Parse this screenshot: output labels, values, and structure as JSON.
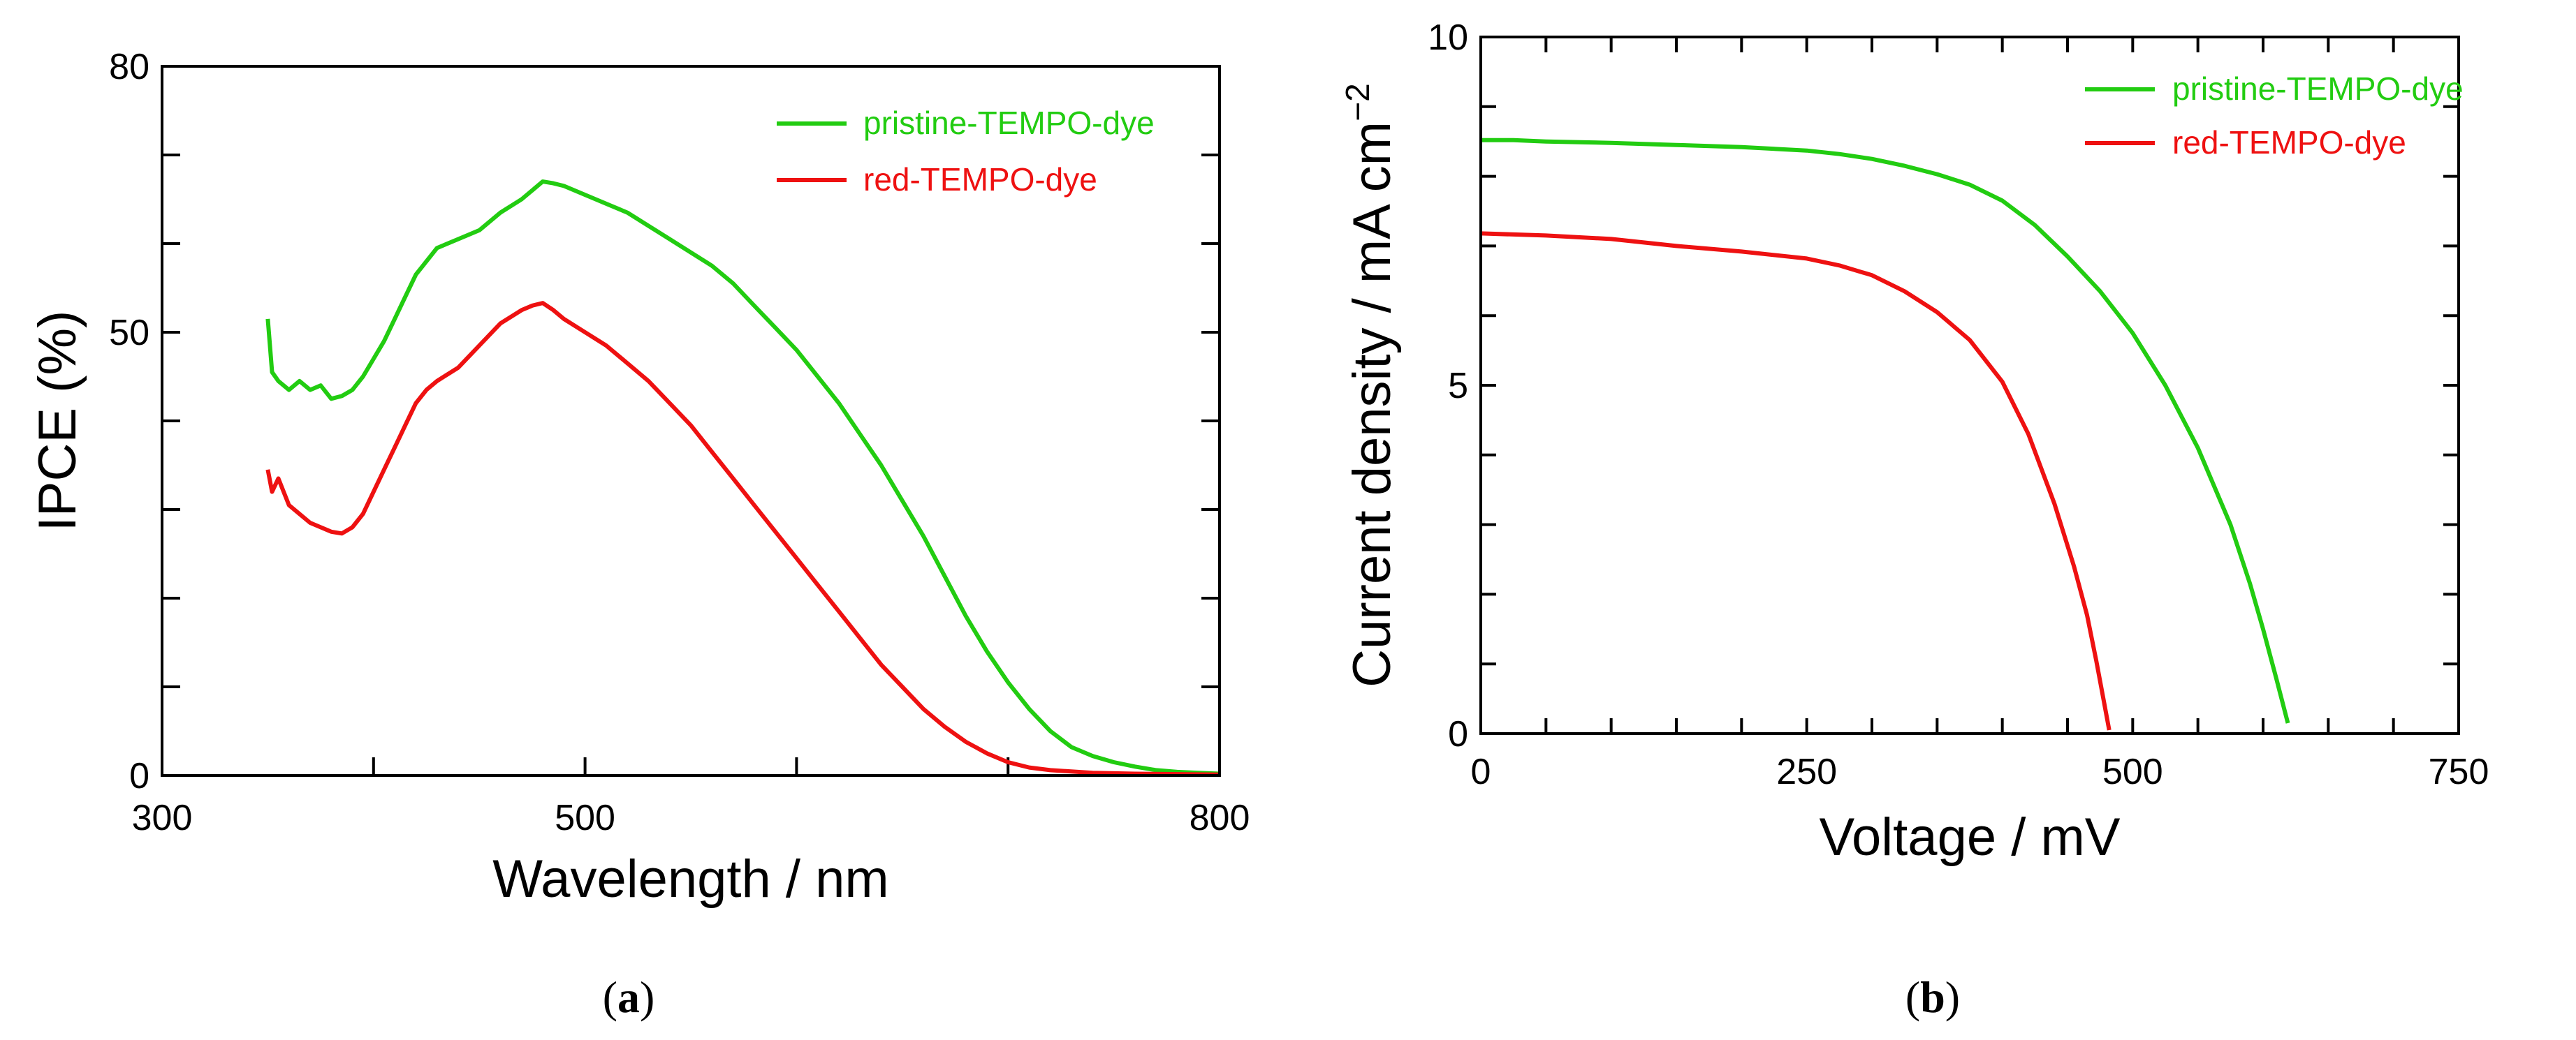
{
  "colors": {
    "green": "#22cc11",
    "red": "#ee1111"
  },
  "chart_data": [
    {
      "type": "line",
      "panel": "(a)",
      "xlabel": "Wavelength / nm",
      "ylabel": "IPCE (%)",
      "xlim": [
        300,
        800
      ],
      "ylim": [
        0,
        80
      ],
      "xticks_labeled": [
        300,
        500,
        800
      ],
      "xticks_minor": [
        400,
        600,
        700
      ],
      "yticks_labeled": [
        0,
        50,
        80
      ],
      "yticks_minor": [
        10,
        20,
        30,
        40,
        60,
        70
      ],
      "legend_position": "top-right",
      "series": [
        {
          "name": "pristine-TEMPO-dye",
          "color": "#22cc11",
          "points": [
            [
              350,
              51.5
            ],
            [
              352,
              45.5
            ],
            [
              355,
              44.5
            ],
            [
              360,
              43.5
            ],
            [
              365,
              44.5
            ],
            [
              370,
              43.5
            ],
            [
              375,
              44
            ],
            [
              380,
              42.5
            ],
            [
              385,
              42.8
            ],
            [
              390,
              43.5
            ],
            [
              395,
              45
            ],
            [
              400,
              47
            ],
            [
              405,
              49
            ],
            [
              410,
              51.5
            ],
            [
              415,
              54
            ],
            [
              420,
              56.5
            ],
            [
              425,
              58
            ],
            [
              430,
              59.5
            ],
            [
              440,
              60.5
            ],
            [
              450,
              61.5
            ],
            [
              460,
              63.5
            ],
            [
              470,
              65
            ],
            [
              475,
              66
            ],
            [
              480,
              67
            ],
            [
              485,
              66.8
            ],
            [
              490,
              66.5
            ],
            [
              500,
              65.5
            ],
            [
              510,
              64.5
            ],
            [
              520,
              63.5
            ],
            [
              530,
              62
            ],
            [
              540,
              60.5
            ],
            [
              550,
              59
            ],
            [
              560,
              57.5
            ],
            [
              570,
              55.5
            ],
            [
              580,
              53
            ],
            [
              590,
              50.5
            ],
            [
              600,
              48
            ],
            [
              610,
              45
            ],
            [
              620,
              42
            ],
            [
              630,
              38.5
            ],
            [
              640,
              35
            ],
            [
              650,
              31
            ],
            [
              660,
              27
            ],
            [
              670,
              22.5
            ],
            [
              680,
              18
            ],
            [
              690,
              14
            ],
            [
              700,
              10.5
            ],
            [
              710,
              7.5
            ],
            [
              720,
              5
            ],
            [
              730,
              3.2
            ],
            [
              740,
              2.2
            ],
            [
              750,
              1.5
            ],
            [
              760,
              1
            ],
            [
              770,
              0.6
            ],
            [
              780,
              0.4
            ],
            [
              790,
              0.3
            ],
            [
              800,
              0.2
            ]
          ]
        },
        {
          "name": "red-TEMPO-dye",
          "color": "#ee1111",
          "points": [
            [
              350,
              34.5
            ],
            [
              352,
              32
            ],
            [
              355,
              33.5
            ],
            [
              360,
              30.5
            ],
            [
              365,
              29.5
            ],
            [
              370,
              28.5
            ],
            [
              375,
              28
            ],
            [
              380,
              27.5
            ],
            [
              385,
              27.3
            ],
            [
              390,
              28
            ],
            [
              395,
              29.5
            ],
            [
              400,
              32
            ],
            [
              405,
              34.5
            ],
            [
              410,
              37
            ],
            [
              415,
              39.5
            ],
            [
              420,
              42
            ],
            [
              425,
              43.5
            ],
            [
              430,
              44.5
            ],
            [
              440,
              46
            ],
            [
              450,
              48.5
            ],
            [
              460,
              51
            ],
            [
              470,
              52.5
            ],
            [
              475,
              53
            ],
            [
              480,
              53.3
            ],
            [
              485,
              52.5
            ],
            [
              490,
              51.5
            ],
            [
              500,
              50
            ],
            [
              510,
              48.5
            ],
            [
              520,
              46.5
            ],
            [
              530,
              44.5
            ],
            [
              540,
              42
            ],
            [
              550,
              39.5
            ],
            [
              560,
              36.5
            ],
            [
              570,
              33.5
            ],
            [
              580,
              30.5
            ],
            [
              590,
              27.5
            ],
            [
              600,
              24.5
            ],
            [
              610,
              21.5
            ],
            [
              620,
              18.5
            ],
            [
              630,
              15.5
            ],
            [
              640,
              12.5
            ],
            [
              650,
              10
            ],
            [
              660,
              7.5
            ],
            [
              670,
              5.5
            ],
            [
              680,
              3.8
            ],
            [
              690,
              2.5
            ],
            [
              700,
              1.5
            ],
            [
              710,
              0.9
            ],
            [
              720,
              0.6
            ],
            [
              740,
              0.3
            ],
            [
              760,
              0.2
            ],
            [
              800,
              0.1
            ]
          ]
        }
      ]
    },
    {
      "type": "line",
      "panel": "(b)",
      "xlabel": "Voltage / mV",
      "ylabel": "Current density / mA cm",
      "ylabel_superscript": "−2",
      "xlim": [
        0,
        750
      ],
      "ylim": [
        0,
        10
      ],
      "xticks_labeled": [
        0,
        250,
        500,
        750
      ],
      "xticks_minor": [
        50,
        100,
        150,
        200,
        300,
        350,
        400,
        450,
        550,
        600,
        650,
        700
      ],
      "yticks_labeled": [
        0,
        5,
        10
      ],
      "yticks_minor": [
        1,
        2,
        3,
        4,
        6,
        7,
        8,
        9
      ],
      "legend_position": "top-right",
      "series": [
        {
          "name": "pristine-TEMPO-dye",
          "color": "#22cc11",
          "points": [
            [
              0,
              8.52
            ],
            [
              25,
              8.52
            ],
            [
              50,
              8.5
            ],
            [
              100,
              8.48
            ],
            [
              150,
              8.45
            ],
            [
              200,
              8.42
            ],
            [
              250,
              8.37
            ],
            [
              275,
              8.32
            ],
            [
              300,
              8.25
            ],
            [
              325,
              8.15
            ],
            [
              350,
              8.03
            ],
            [
              375,
              7.88
            ],
            [
              400,
              7.65
            ],
            [
              425,
              7.3
            ],
            [
              450,
              6.85
            ],
            [
              475,
              6.35
            ],
            [
              500,
              5.75
            ],
            [
              525,
              5.0
            ],
            [
              550,
              4.1
            ],
            [
              575,
              3.0
            ],
            [
              590,
              2.15
            ],
            [
              600,
              1.5
            ],
            [
              610,
              0.8
            ],
            [
              619,
              0.15
            ]
          ]
        },
        {
          "name": "red-TEMPO-dye",
          "color": "#ee1111",
          "points": [
            [
              0,
              7.18
            ],
            [
              50,
              7.15
            ],
            [
              100,
              7.1
            ],
            [
              150,
              7.0
            ],
            [
              200,
              6.92
            ],
            [
              250,
              6.82
            ],
            [
              275,
              6.72
            ],
            [
              300,
              6.58
            ],
            [
              325,
              6.35
            ],
            [
              350,
              6.05
            ],
            [
              375,
              5.65
            ],
            [
              400,
              5.05
            ],
            [
              420,
              4.3
            ],
            [
              440,
              3.3
            ],
            [
              455,
              2.4
            ],
            [
              465,
              1.7
            ],
            [
              472,
              1.05
            ],
            [
              478,
              0.45
            ],
            [
              482,
              0.05
            ]
          ]
        }
      ]
    }
  ]
}
